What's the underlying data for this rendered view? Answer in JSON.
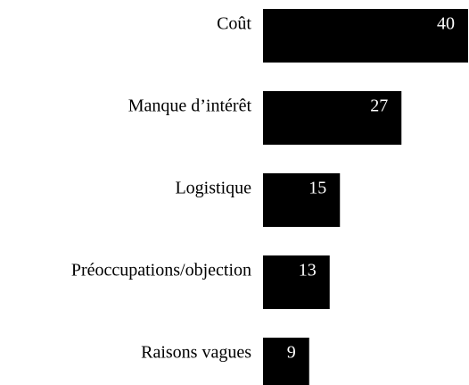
{
  "chart_data": {
    "type": "bar",
    "orientation": "horizontal",
    "categories": [
      "Coût",
      "Manque d’intérêt",
      "Logistique",
      "Préoccupations/objection",
      "Raisons vagues"
    ],
    "values": [
      40,
      27,
      15,
      13,
      9
    ],
    "color": "#000000",
    "label_color": "#ffffff"
  }
}
